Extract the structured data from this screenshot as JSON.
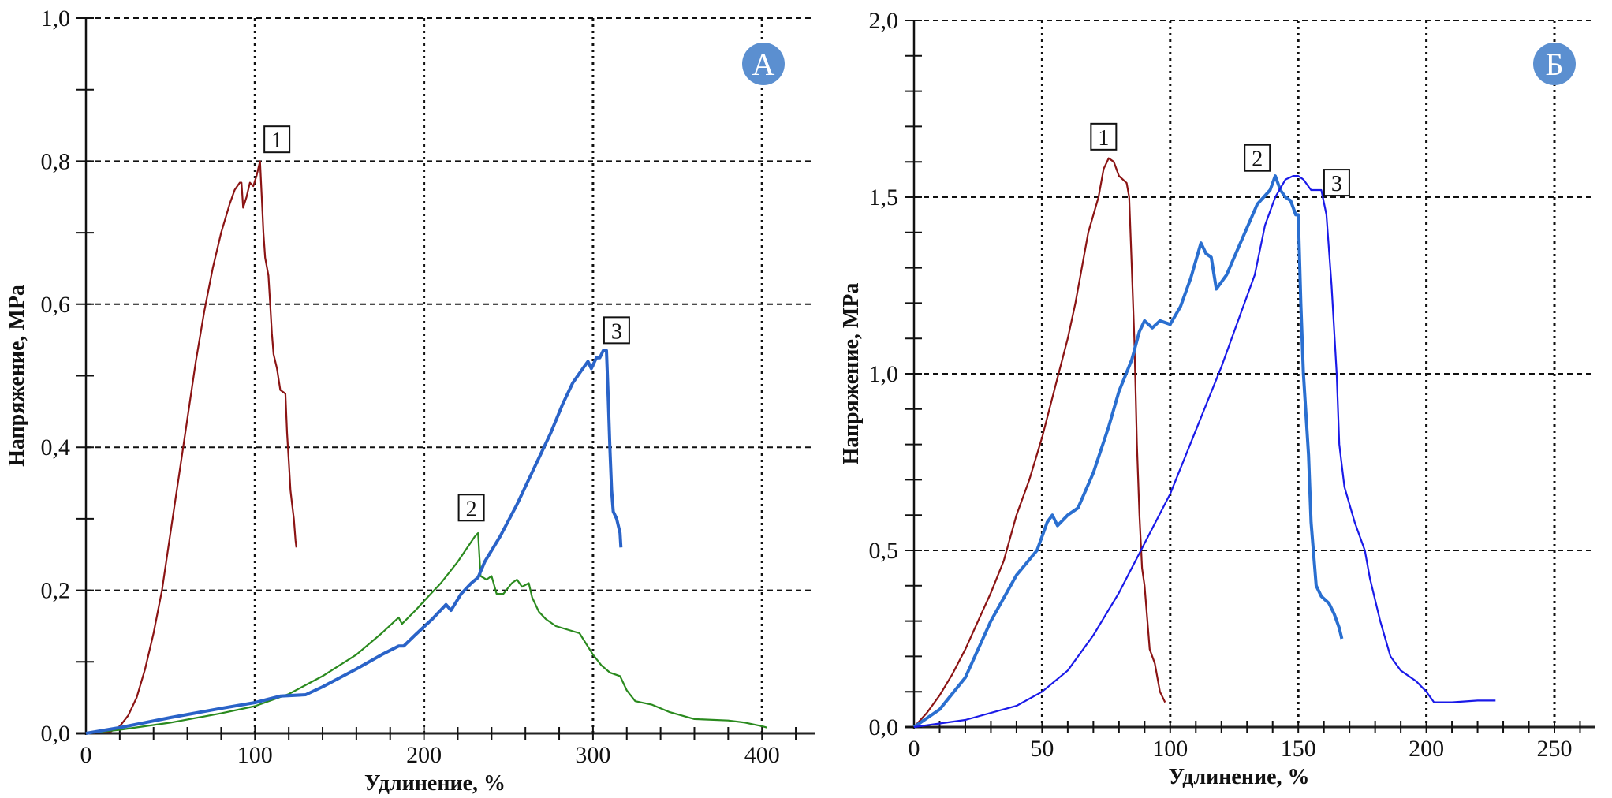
{
  "chart_data": [
    {
      "type": "line",
      "panel": "A",
      "badge": "А",
      "badge_color": "#5b8fd0",
      "xlabel": "Удлинение, %",
      "ylabel": "Напряжение, MPa",
      "xlim": [
        0,
        430
      ],
      "ylim": [
        0,
        1.0
      ],
      "x_ticks": [
        0,
        100,
        200,
        300,
        400
      ],
      "x_tick_labels": [
        "0",
        "100",
        "200",
        "300",
        "400"
      ],
      "x_minor_step": 20,
      "y_ticks": [
        0,
        0.2,
        0.4,
        0.6,
        0.8,
        1.0
      ],
      "y_tick_labels": [
        "0,0",
        "0,2",
        "0,4",
        "0,6",
        "0,8",
        "1,0"
      ],
      "y_minor_step": 0.1,
      "grid": true,
      "series": [
        {
          "name": "1",
          "color": "#8b1414",
          "width": "thin",
          "label_at": [
            113,
            0.83
          ],
          "x": [
            0,
            15,
            20,
            25,
            30,
            35,
            40,
            45,
            50,
            55,
            60,
            65,
            70,
            75,
            80,
            85,
            88,
            91,
            92,
            93,
            95,
            97,
            99,
            101,
            103,
            104,
            105,
            106,
            108,
            109,
            110,
            111,
            113,
            115,
            118,
            119,
            120,
            121,
            122,
            123,
            124,
            124.5
          ],
          "y": [
            0,
            0.003,
            0.01,
            0.025,
            0.05,
            0.09,
            0.14,
            0.2,
            0.28,
            0.36,
            0.44,
            0.52,
            0.59,
            0.65,
            0.7,
            0.74,
            0.76,
            0.77,
            0.77,
            0.735,
            0.75,
            0.77,
            0.765,
            0.78,
            0.8,
            0.75,
            0.7,
            0.665,
            0.64,
            0.6,
            0.56,
            0.53,
            0.51,
            0.48,
            0.475,
            0.42,
            0.38,
            0.34,
            0.32,
            0.3,
            0.27,
            0.26
          ]
        },
        {
          "name": "2",
          "color": "#2a8a1e",
          "width": "thin",
          "label_at": [
            228,
            0.315
          ],
          "x": [
            0,
            20,
            50,
            80,
            100,
            120,
            140,
            160,
            175,
            185,
            187,
            195,
            200,
            210,
            220,
            230,
            232,
            233,
            233.5,
            237,
            240,
            243,
            247,
            252,
            255,
            258,
            262,
            264,
            268,
            272,
            278,
            285,
            292,
            296,
            300,
            305,
            310,
            316,
            320,
            325,
            335,
            345,
            360,
            380,
            390,
            400,
            403
          ],
          "y": [
            0,
            0.005,
            0.015,
            0.028,
            0.038,
            0.055,
            0.08,
            0.11,
            0.14,
            0.162,
            0.153,
            0.172,
            0.185,
            0.21,
            0.24,
            0.275,
            0.28,
            0.24,
            0.22,
            0.215,
            0.22,
            0.195,
            0.195,
            0.21,
            0.215,
            0.205,
            0.21,
            0.19,
            0.17,
            0.16,
            0.15,
            0.145,
            0.14,
            0.125,
            0.11,
            0.095,
            0.085,
            0.08,
            0.06,
            0.045,
            0.04,
            0.03,
            0.02,
            0.018,
            0.015,
            0.01,
            0.008
          ]
        },
        {
          "name": "3",
          "color": "#2a63c8",
          "width": "thick",
          "label_at": [
            314,
            0.563
          ],
          "x": [
            0,
            20,
            50,
            80,
            100,
            115,
            130,
            140,
            160,
            175,
            185,
            188,
            195,
            205,
            213,
            216,
            222,
            228,
            232,
            236,
            245,
            255,
            265,
            275,
            282,
            288,
            294,
            297,
            299,
            302,
            304,
            306,
            308,
            309,
            310,
            311,
            312,
            314,
            316,
            316.5
          ],
          "y": [
            0,
            0.008,
            0.022,
            0.035,
            0.043,
            0.052,
            0.054,
            0.065,
            0.09,
            0.11,
            0.122,
            0.122,
            0.138,
            0.16,
            0.18,
            0.172,
            0.195,
            0.21,
            0.218,
            0.24,
            0.275,
            0.32,
            0.37,
            0.42,
            0.46,
            0.49,
            0.51,
            0.52,
            0.51,
            0.525,
            0.525,
            0.535,
            0.535,
            0.47,
            0.4,
            0.34,
            0.31,
            0.3,
            0.28,
            0.26
          ]
        }
      ]
    },
    {
      "type": "line",
      "panel": "B",
      "badge": "Б",
      "badge_color": "#5b8fd0",
      "xlabel": "Удлинение, %",
      "ylabel": "Напряжение, MPa",
      "xlim": [
        0,
        265
      ],
      "ylim": [
        0,
        2.0
      ],
      "x_ticks": [
        0,
        50,
        100,
        150,
        200,
        250
      ],
      "x_tick_labels": [
        "0",
        "50",
        "100",
        "150",
        "200",
        "250"
      ],
      "x_minor_step": 10,
      "y_ticks": [
        0,
        0.5,
        1.0,
        1.5,
        2.0
      ],
      "y_tick_labels": [
        "0,0",
        "0,5",
        "1,0",
        "1,5",
        "2,0"
      ],
      "y_minor_step": 0.1,
      "grid": true,
      "series": [
        {
          "name": "1",
          "color": "#8b1414",
          "width": "thin",
          "label_at": [
            74,
            1.67
          ],
          "x": [
            0,
            5,
            10,
            15,
            20,
            25,
            30,
            35,
            40,
            45,
            50,
            55,
            60,
            63,
            66,
            68,
            70,
            72,
            74,
            76,
            78,
            80,
            83,
            84,
            85,
            86,
            87,
            88,
            89,
            90,
            92,
            94,
            96,
            98
          ],
          "y": [
            0,
            0.04,
            0.09,
            0.15,
            0.22,
            0.3,
            0.38,
            0.47,
            0.6,
            0.7,
            0.82,
            0.96,
            1.1,
            1.2,
            1.32,
            1.4,
            1.45,
            1.5,
            1.58,
            1.61,
            1.6,
            1.56,
            1.54,
            1.5,
            1.3,
            1.1,
            0.8,
            0.6,
            0.45,
            0.4,
            0.22,
            0.18,
            0.1,
            0.07
          ]
        },
        {
          "name": "2",
          "color": "#2a6fd0",
          "width": "thick",
          "label_at": [
            134,
            1.61
          ],
          "x": [
            0,
            10,
            20,
            30,
            40,
            48,
            52,
            54,
            56,
            60,
            64,
            70,
            76,
            80,
            85,
            88,
            90,
            93,
            96,
            100,
            104,
            108,
            112,
            114,
            116,
            118,
            122,
            128,
            134,
            139,
            141,
            143,
            145,
            147,
            149,
            150,
            151,
            152,
            154,
            155,
            157,
            159,
            162,
            164,
            166,
            167
          ],
          "y": [
            0,
            0.05,
            0.14,
            0.3,
            0.43,
            0.5,
            0.58,
            0.6,
            0.57,
            0.6,
            0.62,
            0.72,
            0.85,
            0.95,
            1.04,
            1.12,
            1.15,
            1.13,
            1.15,
            1.14,
            1.19,
            1.27,
            1.37,
            1.34,
            1.33,
            1.24,
            1.28,
            1.38,
            1.48,
            1.52,
            1.56,
            1.52,
            1.5,
            1.49,
            1.45,
            1.45,
            1.2,
            1.0,
            0.77,
            0.58,
            0.4,
            0.37,
            0.35,
            0.32,
            0.28,
            0.25
          ]
        },
        {
          "name": "3",
          "color": "#1a1ae8",
          "width": "thin",
          "label_at": [
            165,
            1.54
          ],
          "x": [
            0,
            20,
            40,
            50,
            60,
            70,
            80,
            90,
            100,
            110,
            120,
            128,
            133,
            137,
            141,
            145,
            148,
            150,
            152,
            155,
            159,
            161,
            163,
            165,
            166,
            168,
            172,
            176,
            178,
            182,
            186,
            190,
            196,
            200,
            203,
            210,
            220,
            227
          ],
          "y": [
            0,
            0.02,
            0.06,
            0.1,
            0.16,
            0.26,
            0.38,
            0.52,
            0.66,
            0.84,
            1.02,
            1.18,
            1.28,
            1.42,
            1.5,
            1.55,
            1.56,
            1.56,
            1.55,
            1.52,
            1.52,
            1.45,
            1.25,
            1.0,
            0.8,
            0.68,
            0.58,
            0.5,
            0.42,
            0.3,
            0.2,
            0.16,
            0.13,
            0.1,
            0.07,
            0.07,
            0.075,
            0.075
          ]
        }
      ]
    }
  ]
}
